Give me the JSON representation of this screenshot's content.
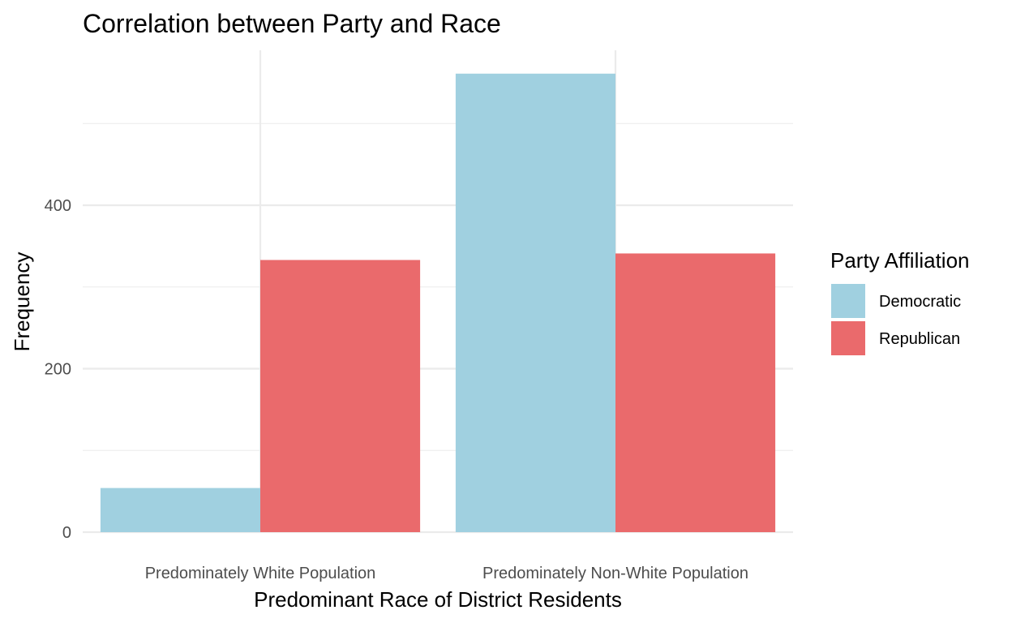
{
  "chart_data": {
    "type": "bar",
    "title": "Correlation between Party and Race",
    "xlabel": "Predominant Race of District Residents",
    "ylabel": "Frequency",
    "categories": [
      "Predominately White Population",
      "Predominately Non-White Population"
    ],
    "series": [
      {
        "name": "Democratic",
        "color": "#a0d0e0",
        "values": [
          54,
          561
        ]
      },
      {
        "name": "Republican",
        "color": "#ea6a6c",
        "values": [
          333,
          341
        ]
      }
    ],
    "ylim": [
      0,
      590
    ],
    "yticks": [
      0,
      200,
      400
    ],
    "grid": true,
    "legend": {
      "title": "Party Affiliation",
      "position": "right"
    }
  }
}
